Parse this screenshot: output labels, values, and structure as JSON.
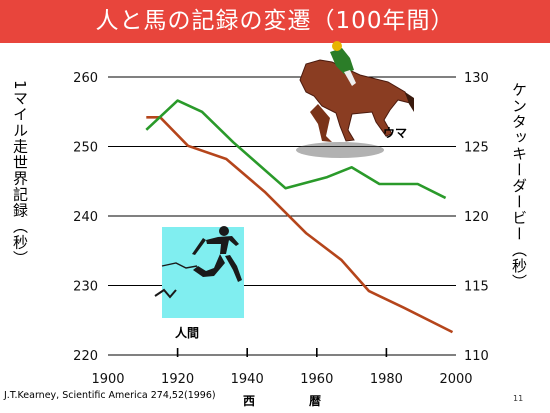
{
  "title": "人と馬の記録の変遷（100年間）",
  "source": "J.T.Kearney, Scientific America 274,52(1996)",
  "page_number": "11",
  "colors": {
    "title_bg": "#e8453c",
    "human": "#b5451b",
    "horse": "#2a9a2a",
    "runner_box": "#80eef0"
  },
  "icons": [
    "racehorse-illustration-icon",
    "runner-silhouette-icon"
  ],
  "chart_data": {
    "type": "line",
    "xlabel": [
      "西",
      "暦"
    ],
    "ylabel_left": "1マイル走世界記録（秒）",
    "ylabel_right": "ケンタッキーダービー（秒）",
    "xlim": [
      1900,
      2000
    ],
    "ylim_left": [
      220,
      260
    ],
    "ylim_right": [
      110,
      130
    ],
    "x_ticks": [
      1900,
      1920,
      1940,
      1960,
      1980,
      2000
    ],
    "y_ticks_left": [
      220,
      230,
      240,
      250,
      260
    ],
    "y_ticks_right": [
      110,
      115,
      120,
      125,
      130
    ],
    "grid": "horizontal",
    "annotations": {
      "horse": "ウマ",
      "human": "人間"
    },
    "series": [
      {
        "name": "人間",
        "axis": "left",
        "x": [
          1911,
          1915,
          1923,
          1934,
          1945,
          1957,
          1967,
          1975,
          1985,
          1999
        ],
        "y": [
          254.2,
          254.2,
          250.1,
          248.2,
          243.5,
          237.5,
          233.7,
          229.2,
          226.8,
          223.3
        ]
      },
      {
        "name": "ウマ",
        "axis": "right",
        "x": [
          1911,
          1920,
          1927,
          1936,
          1951,
          1963,
          1970,
          1978,
          1989,
          1997
        ],
        "y": [
          126.2,
          128.3,
          127.5,
          125.3,
          122.0,
          122.8,
          123.5,
          122.3,
          122.3,
          121.3
        ]
      }
    ]
  }
}
